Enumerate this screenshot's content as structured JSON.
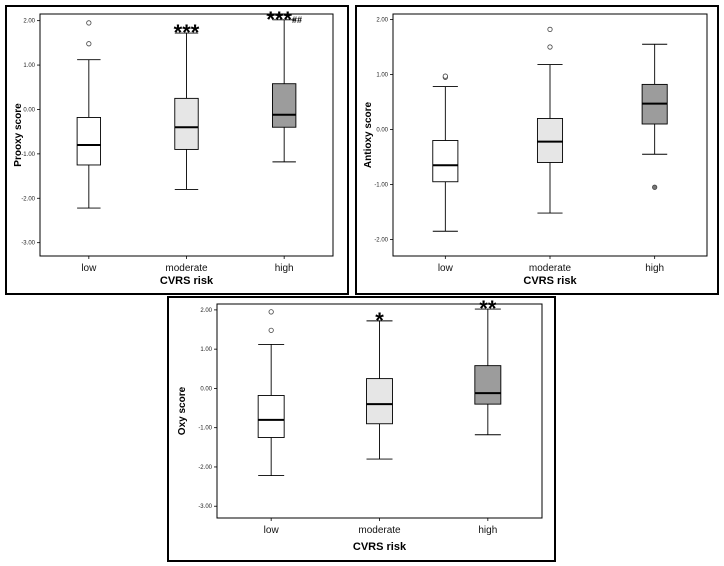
{
  "chart_data": [
    {
      "type": "box",
      "xlabel": "CVRS risk",
      "ylabel": "Prooxy score",
      "ylim": [
        -3.3,
        2.15
      ],
      "yticks": [
        "-3.00",
        "-2.00",
        "-1.00",
        "0.00",
        "1.00",
        "2.00"
      ],
      "categories": [
        "low",
        "moderate",
        "high"
      ],
      "colors": [
        "#ffffff",
        "#e6e6e6",
        "#9c9c9c"
      ],
      "boxes": [
        {
          "min": -2.22,
          "q1": -1.25,
          "median": -0.8,
          "q3": -0.18,
          "max": 1.12,
          "outliers": [
            1.48,
            1.95
          ]
        },
        {
          "min": -1.8,
          "q1": -0.9,
          "median": -0.4,
          "q3": 0.25,
          "max": 1.72,
          "outliers": []
        },
        {
          "min": -1.18,
          "q1": -0.4,
          "median": -0.12,
          "q3": 0.58,
          "max": 2.02,
          "outliers": []
        }
      ],
      "annotations": [
        "",
        "***",
        "***##"
      ]
    },
    {
      "type": "box",
      "xlabel": "CVRS risk",
      "ylabel": "Antioxy score",
      "ylim": [
        -2.3,
        2.1
      ],
      "yticks": [
        "-2.00",
        "-1.00",
        "0.00",
        "1.00",
        "2.00"
      ],
      "categories": [
        "low",
        "moderate",
        "high"
      ],
      "colors": [
        "#ffffff",
        "#e6e6e6",
        "#9c9c9c"
      ],
      "boxes": [
        {
          "min": -1.85,
          "q1": -0.95,
          "median": -0.65,
          "q3": -0.2,
          "max": 0.78,
          "outliers": [
            0.95,
            0.97
          ]
        },
        {
          "min": -1.52,
          "q1": -0.6,
          "median": -0.22,
          "q3": 0.2,
          "max": 1.18,
          "outliers": [
            1.5,
            1.82
          ]
        },
        {
          "min": -0.45,
          "q1": 0.1,
          "median": 0.47,
          "q3": 0.82,
          "max": 1.55,
          "outliers": [
            -1.05
          ]
        }
      ],
      "annotations": [
        "",
        "",
        ""
      ]
    },
    {
      "type": "box",
      "xlabel": "CVRS risk",
      "ylabel": "Oxy score",
      "ylim": [
        -3.3,
        2.15
      ],
      "yticks": [
        "-3.00",
        "-2.00",
        "-1.00",
        "0.00",
        "1.00",
        "2.00"
      ],
      "categories": [
        "low",
        "moderate",
        "high"
      ],
      "colors": [
        "#ffffff",
        "#e6e6e6",
        "#9c9c9c"
      ],
      "boxes": [
        {
          "min": -2.22,
          "q1": -1.25,
          "median": -0.8,
          "q3": -0.18,
          "max": 1.12,
          "outliers": [
            1.48,
            1.95
          ]
        },
        {
          "min": -1.8,
          "q1": -0.9,
          "median": -0.4,
          "q3": 0.25,
          "max": 1.72,
          "outliers": []
        },
        {
          "min": -1.18,
          "q1": -0.4,
          "median": -0.12,
          "q3": 0.58,
          "max": 2.02,
          "outliers": []
        }
      ],
      "annotations": [
        "",
        "*",
        "**"
      ]
    }
  ]
}
